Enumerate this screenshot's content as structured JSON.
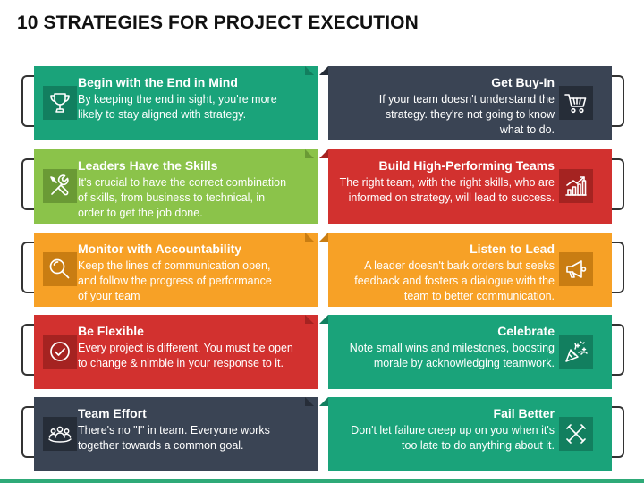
{
  "title": "10 STRATEGIES FOR PROJECT EXECUTION",
  "colors": {
    "teal": "#1aa37a",
    "teal_dark": "#127f5f",
    "green": "#8bc34a",
    "green_dark": "#6a9a35",
    "orange": "#f7a126",
    "orange_dark": "#c97d12",
    "red": "#d2312f",
    "red_dark": "#a52321",
    "navy": "#3a4454",
    "navy_dark": "#262d38",
    "accent_bar": "#2eaa78"
  },
  "left_cards": [
    {
      "icon": "trophy-icon",
      "heading": "Begin with the End in Mind",
      "lines": [
        "By keeping the end in sight, you're more",
        "likely to stay aligned with strategy."
      ]
    },
    {
      "icon": "tools-icon",
      "heading": "Leaders Have the Skills",
      "lines": [
        "It's crucial to have the correct combination",
        "of skills, from business to technical, in",
        "order to get the job done."
      ]
    },
    {
      "icon": "magnifier-icon",
      "heading": "Monitor with Accountability",
      "lines": [
        "Keep the lines of communication open,",
        "and follow the progress of performance",
        "of your team"
      ]
    },
    {
      "icon": "checkmark-icon",
      "heading": "Be Flexible",
      "lines": [
        "Every project is different. You must be open",
        "to change & nimble in your response to it."
      ]
    },
    {
      "icon": "team-icon",
      "heading": "Team Effort",
      "lines": [
        "There's no \"I\" in team. Everyone works",
        "together towards a common goal."
      ]
    }
  ],
  "right_cards": [
    {
      "icon": "shopping-cart-icon",
      "heading": "Get Buy-In",
      "lines": [
        "If your team doesn't understand the",
        "strategy. they're not going to know",
        "what to do."
      ]
    },
    {
      "icon": "growth-chart-icon",
      "heading": "Build High-Performing Teams",
      "lines": [
        "The right team, with the right skills, who are",
        "informed on strategy, will lead to success."
      ]
    },
    {
      "icon": "megaphone-icon",
      "heading": "Listen to Lead",
      "lines": [
        "A leader doesn't bark orders but seeks",
        "feedback and fosters a dialogue with the",
        "team to better communication."
      ]
    },
    {
      "icon": "party-popper-icon",
      "heading": "Celebrate",
      "lines": [
        "Note small wins and milestones, boosting",
        "morale by acknowledging teamwork."
      ]
    },
    {
      "icon": "cross-icon",
      "heading": "Fail Better",
      "lines": [
        "Don't let failure creep up on you when it's",
        "too late to do anything about it."
      ]
    }
  ]
}
